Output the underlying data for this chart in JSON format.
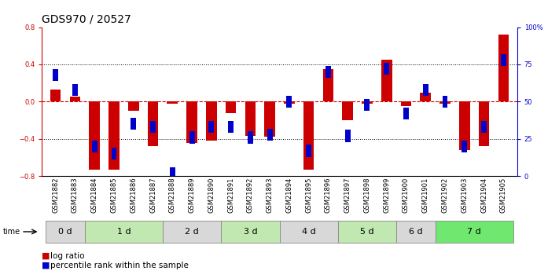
{
  "title": "GDS970 / 20527",
  "samples": [
    "GSM21882",
    "GSM21883",
    "GSM21884",
    "GSM21885",
    "GSM21886",
    "GSM21887",
    "GSM21888",
    "GSM21889",
    "GSM21890",
    "GSM21891",
    "GSM21892",
    "GSM21893",
    "GSM21894",
    "GSM21895",
    "GSM21896",
    "GSM21897",
    "GSM21898",
    "GSM21899",
    "GSM21900",
    "GSM21901",
    "GSM21902",
    "GSM21903",
    "GSM21904",
    "GSM21905"
  ],
  "log_ratio": [
    0.13,
    0.05,
    -0.73,
    -0.73,
    -0.1,
    -0.48,
    -0.02,
    -0.44,
    -0.42,
    -0.12,
    -0.37,
    -0.38,
    -0.02,
    -0.73,
    0.35,
    -0.2,
    -0.02,
    0.45,
    -0.05,
    0.1,
    -0.02,
    -0.52,
    -0.48,
    0.72
  ],
  "percentile": [
    68,
    58,
    20,
    15,
    35,
    33,
    2,
    26,
    33,
    33,
    26,
    28,
    50,
    17,
    70,
    27,
    48,
    72,
    42,
    58,
    50,
    20,
    33,
    78
  ],
  "bar_color_red": "#cc0000",
  "bar_color_blue": "#0000cc",
  "ylim_left": [
    -0.8,
    0.8
  ],
  "ylim_right": [
    0,
    100
  ],
  "yticks_left": [
    -0.8,
    -0.4,
    0.0,
    0.4,
    0.8
  ],
  "yticks_right": [
    0,
    25,
    50,
    75,
    100
  ],
  "ytick_labels_right": [
    "0",
    "25",
    "50",
    "75",
    "100%"
  ],
  "hline_dotted": [
    0.4,
    -0.4
  ],
  "hline_dashed_color": "#cc0000",
  "group_data": [
    {
      "name": "0 d",
      "indices": [
        0,
        1
      ],
      "color": "#d8d8d8"
    },
    {
      "name": "1 d",
      "indices": [
        2,
        3,
        4,
        5
      ],
      "color": "#c0e8b0"
    },
    {
      "name": "2 d",
      "indices": [
        6,
        7,
        8
      ],
      "color": "#d8d8d8"
    },
    {
      "name": "3 d",
      "indices": [
        9,
        10,
        11
      ],
      "color": "#c0e8b0"
    },
    {
      "name": "4 d",
      "indices": [
        12,
        13,
        14
      ],
      "color": "#d8d8d8"
    },
    {
      "name": "5 d",
      "indices": [
        15,
        16,
        17
      ],
      "color": "#c0e8b0"
    },
    {
      "name": "6 d",
      "indices": [
        18,
        19
      ],
      "color": "#d8d8d8"
    },
    {
      "name": "7 d",
      "indices": [
        20,
        21,
        22,
        23
      ],
      "color": "#70e870"
    }
  ],
  "bar_width": 0.55,
  "blue_bar_width": 0.28,
  "blue_half_pct": 4.0,
  "background_color": "#ffffff",
  "tick_label_fontsize": 6,
  "title_fontsize": 10,
  "legend_fontsize": 7.5,
  "group_label_fontsize": 8,
  "left_tick_color": "#cc0000",
  "right_tick_color": "#0000cc"
}
